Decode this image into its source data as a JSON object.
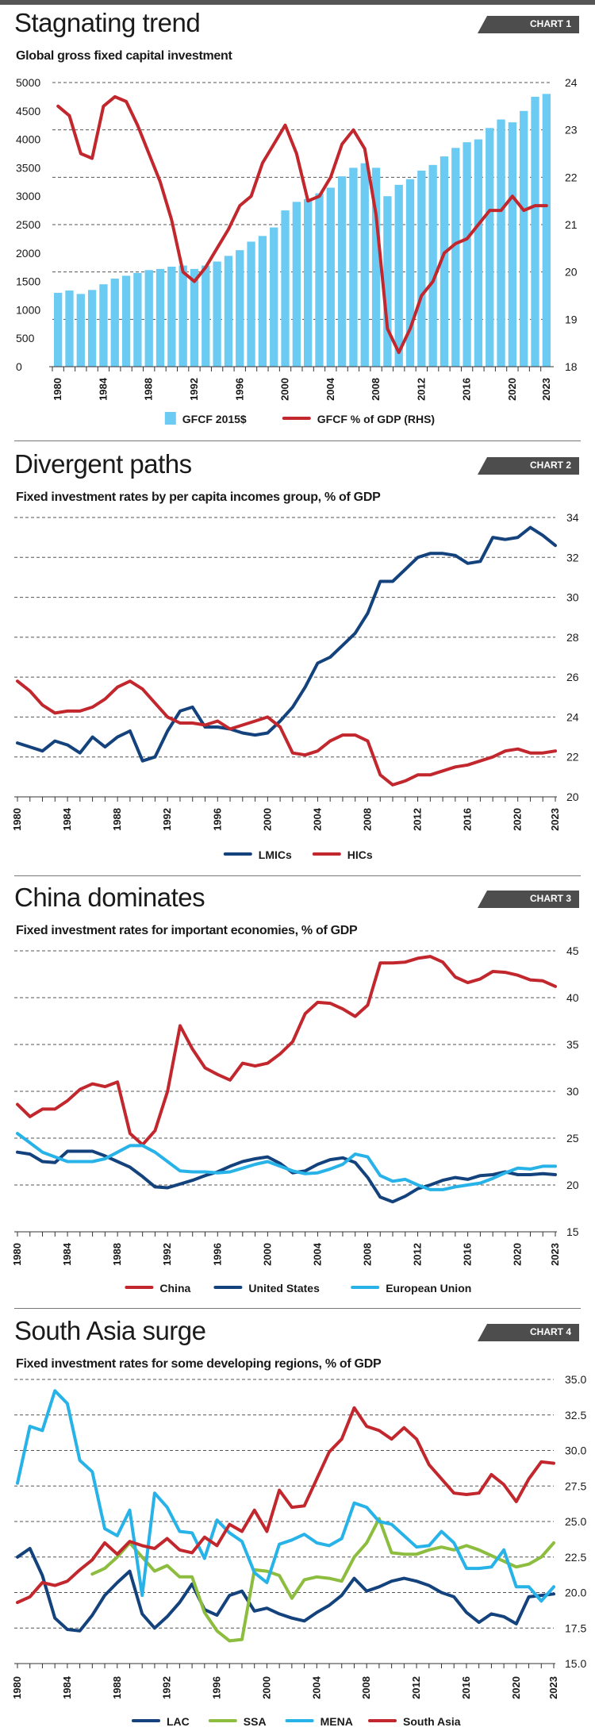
{
  "chart_data": [
    {
      "type": "bar+line",
      "tag": "CHART 1",
      "title": "Stagnating trend",
      "subtitle": "Global gross fixed capital investment",
      "x": [
        1980,
        1981,
        1982,
        1983,
        1984,
        1985,
        1986,
        1987,
        1988,
        1989,
        1990,
        1991,
        1992,
        1993,
        1994,
        1995,
        1996,
        1997,
        1998,
        1999,
        2000,
        2001,
        2002,
        2003,
        2004,
        2005,
        2006,
        2007,
        2008,
        2009,
        2010,
        2011,
        2012,
        2013,
        2014,
        2015,
        2016,
        2017,
        2018,
        2019,
        2020,
        2021,
        2022,
        2023
      ],
      "xticks": [
        "1980",
        "1984",
        "1988",
        "1992",
        "1996",
        "2000",
        "2004",
        "2008",
        "2012",
        "2016",
        "2020",
        "2023"
      ],
      "ylim": [
        0,
        5000
      ],
      "yticks": [
        "0",
        "500",
        "1000",
        "1500",
        "2000",
        "2500",
        "3000",
        "3500",
        "4000",
        "4500",
        "5000"
      ],
      "y2lim": [
        18,
        24
      ],
      "y2ticks": [
        "18",
        "19",
        "20",
        "21",
        "22",
        "23",
        "24"
      ],
      "series": [
        {
          "name": "GFCF 2015$",
          "kind": "bar",
          "axis": "left",
          "color": "#6ccbf2",
          "values": [
            1300,
            1340,
            1280,
            1350,
            1450,
            1550,
            1600,
            1650,
            1700,
            1720,
            1760,
            1780,
            1720,
            1780,
            1850,
            1950,
            2050,
            2200,
            2300,
            2450,
            2750,
            2900,
            2950,
            3050,
            3150,
            3350,
            3500,
            3580,
            3500,
            3000,
            3200,
            3300,
            3450,
            3550,
            3700,
            3850,
            3950,
            4000,
            4200,
            4350,
            4300,
            4500,
            4750,
            4800
          ]
        },
        {
          "name": "GFCF % of GDP (RHS)",
          "kind": "line",
          "axis": "right",
          "color": "#c1272d",
          "values": [
            23.5,
            23.3,
            22.5,
            22.4,
            23.5,
            23.7,
            23.6,
            23.1,
            22.5,
            21.9,
            21.1,
            20.0,
            19.8,
            20.1,
            20.5,
            20.9,
            21.4,
            21.6,
            22.3,
            22.7,
            23.1,
            22.5,
            21.5,
            21.6,
            22.0,
            22.7,
            23.0,
            22.6,
            21.2,
            18.8,
            18.3,
            18.8,
            19.5,
            19.8,
            20.4,
            20.6,
            20.7,
            21.0,
            21.3,
            21.3,
            21.6,
            21.3,
            21.4,
            21.4
          ]
        }
      ]
    },
    {
      "type": "line",
      "tag": "CHART 2",
      "title": "Divergent paths",
      "subtitle": "Fixed investment rates by per capita incomes group, % of GDP",
      "x": [
        1980,
        1981,
        1982,
        1983,
        1984,
        1985,
        1986,
        1987,
        1988,
        1989,
        1990,
        1991,
        1992,
        1993,
        1994,
        1995,
        1996,
        1997,
        1998,
        1999,
        2000,
        2001,
        2002,
        2003,
        2004,
        2005,
        2006,
        2007,
        2008,
        2009,
        2010,
        2011,
        2012,
        2013,
        2014,
        2015,
        2016,
        2017,
        2018,
        2019,
        2020,
        2021,
        2022,
        2023
      ],
      "xticks": [
        "1980",
        "1984",
        "1988",
        "1992",
        "1996",
        "2000",
        "2004",
        "2008",
        "2012",
        "2016",
        "2020",
        "2023"
      ],
      "ylim": [
        20,
        34
      ],
      "yticks": [
        "20",
        "22",
        "24",
        "26",
        "28",
        "30",
        "32",
        "34"
      ],
      "series": [
        {
          "name": "LMICs",
          "color": "#13427d",
          "values": [
            22.7,
            22.5,
            22.3,
            22.8,
            22.6,
            22.2,
            23.0,
            22.5,
            23.0,
            23.3,
            21.8,
            22.0,
            23.3,
            24.3,
            24.5,
            23.5,
            23.5,
            23.4,
            23.2,
            23.1,
            23.2,
            23.8,
            24.5,
            25.5,
            26.7,
            27.0,
            27.6,
            28.2,
            29.2,
            30.8,
            30.8,
            31.4,
            32.0,
            32.2,
            32.2,
            32.1,
            31.7,
            31.8,
            33.0,
            32.9,
            33.0,
            33.5,
            33.1,
            32.6
          ]
        },
        {
          "name": "HICs",
          "color": "#c1272d",
          "values": [
            25.8,
            25.3,
            24.6,
            24.2,
            24.3,
            24.3,
            24.5,
            24.9,
            25.5,
            25.8,
            25.4,
            24.7,
            24.0,
            23.7,
            23.7,
            23.6,
            23.8,
            23.4,
            23.6,
            23.8,
            24.0,
            23.5,
            22.2,
            22.1,
            22.3,
            22.8,
            23.1,
            23.1,
            22.8,
            21.1,
            20.6,
            20.8,
            21.1,
            21.1,
            21.3,
            21.5,
            21.6,
            21.8,
            22.0,
            22.3,
            22.4,
            22.2,
            22.2,
            22.3
          ]
        }
      ]
    },
    {
      "type": "line",
      "tag": "CHART 3",
      "title": "China dominates",
      "subtitle": "Fixed investment rates for important economies, % of GDP",
      "x": [
        1980,
        1981,
        1982,
        1983,
        1984,
        1985,
        1986,
        1987,
        1988,
        1989,
        1990,
        1991,
        1992,
        1993,
        1994,
        1995,
        1996,
        1997,
        1998,
        1999,
        2000,
        2001,
        2002,
        2003,
        2004,
        2005,
        2006,
        2007,
        2008,
        2009,
        2010,
        2011,
        2012,
        2013,
        2014,
        2015,
        2016,
        2017,
        2018,
        2019,
        2020,
        2021,
        2022,
        2023
      ],
      "xticks": [
        "1980",
        "1984",
        "1988",
        "1992",
        "1996",
        "2000",
        "2004",
        "2008",
        "2012",
        "2016",
        "2020",
        "2023"
      ],
      "ylim": [
        15,
        45
      ],
      "yticks": [
        "15",
        "20",
        "25",
        "30",
        "35",
        "40",
        "45"
      ],
      "series": [
        {
          "name": "China",
          "color": "#c1272d",
          "values": [
            28.6,
            27.3,
            28.1,
            28.1,
            29.0,
            30.2,
            30.8,
            30.5,
            31.0,
            25.5,
            24.3,
            25.8,
            30.0,
            37.0,
            34.5,
            32.5,
            31.8,
            31.2,
            33.0,
            32.7,
            33.0,
            34.0,
            35.3,
            38.3,
            39.5,
            39.4,
            38.8,
            38.0,
            39.2,
            43.7,
            43.7,
            43.8,
            44.2,
            44.4,
            43.8,
            42.2,
            41.6,
            42.0,
            42.8,
            42.7,
            42.4,
            41.9,
            41.8,
            41.2
          ]
        },
        {
          "name": "United States",
          "color": "#13427d",
          "values": [
            23.5,
            23.3,
            22.5,
            22.4,
            23.6,
            23.6,
            23.6,
            23.1,
            22.5,
            21.9,
            20.9,
            19.8,
            19.7,
            20.1,
            20.5,
            21.0,
            21.4,
            22.0,
            22.5,
            22.8,
            23.0,
            22.3,
            21.3,
            21.5,
            22.2,
            22.7,
            22.9,
            22.4,
            20.8,
            18.7,
            18.2,
            18.8,
            19.6,
            20.0,
            20.5,
            20.8,
            20.6,
            21.0,
            21.1,
            21.4,
            21.1,
            21.1,
            21.2,
            21.1
          ]
        },
        {
          "name": "European Union",
          "color": "#27b2e8",
          "values": [
            25.5,
            24.5,
            23.5,
            23.0,
            22.5,
            22.5,
            22.5,
            22.8,
            23.5,
            24.2,
            24.2,
            23.5,
            22.5,
            21.5,
            21.4,
            21.4,
            21.3,
            21.4,
            21.8,
            22.2,
            22.5,
            22.0,
            21.5,
            21.2,
            21.3,
            21.7,
            22.2,
            23.3,
            23.0,
            21.0,
            20.4,
            20.6,
            20.0,
            19.5,
            19.5,
            19.8,
            20.0,
            20.2,
            20.7,
            21.3,
            21.8,
            21.7,
            22.0,
            22.0
          ]
        }
      ]
    },
    {
      "type": "line",
      "tag": "CHART 4",
      "title": "South Asia surge",
      "subtitle": "Fixed investment rates for some developing regions, % of GDP",
      "x": [
        1980,
        1981,
        1982,
        1983,
        1984,
        1985,
        1986,
        1987,
        1988,
        1989,
        1990,
        1991,
        1992,
        1993,
        1994,
        1995,
        1996,
        1997,
        1998,
        1999,
        2000,
        2001,
        2002,
        2003,
        2004,
        2005,
        2006,
        2007,
        2008,
        2009,
        2010,
        2011,
        2012,
        2013,
        2014,
        2015,
        2016,
        2017,
        2018,
        2019,
        2020,
        2021,
        2022,
        2023
      ],
      "xticks": [
        "1980",
        "1984",
        "1988",
        "1992",
        "1996",
        "2000",
        "2004",
        "2008",
        "2012",
        "2016",
        "2020",
        "2023"
      ],
      "ylim": [
        15,
        35
      ],
      "yticks": [
        "15.0",
        "17.5",
        "20.0",
        "22.5",
        "25.0",
        "27.5",
        "30.0",
        "32.5",
        "35.0"
      ],
      "series": [
        {
          "name": "LAC",
          "color": "#13427d",
          "values": [
            22.5,
            23.1,
            21.2,
            18.2,
            17.4,
            17.3,
            18.4,
            19.8,
            20.7,
            21.5,
            18.5,
            17.5,
            18.3,
            19.3,
            20.6,
            18.8,
            18.4,
            19.8,
            20.1,
            18.7,
            18.9,
            18.5,
            18.2,
            18.0,
            18.6,
            19.1,
            19.8,
            21.0,
            20.1,
            20.4,
            20.8,
            21.0,
            20.8,
            20.5,
            20.0,
            19.7,
            18.6,
            17.9,
            18.5,
            18.3,
            17.8,
            19.7,
            19.8,
            19.9
          ]
        },
        {
          "name": "SSA",
          "color": "#8cbd3f",
          "values": [
            null,
            null,
            null,
            null,
            null,
            null,
            21.3,
            21.7,
            22.5,
            23.5,
            22.5,
            21.5,
            21.9,
            21.1,
            21.1,
            18.6,
            17.3,
            16.6,
            16.7,
            21.6,
            21.5,
            21.2,
            19.6,
            20.9,
            21.1,
            21.0,
            20.8,
            22.5,
            23.5,
            25.2,
            22.8,
            22.7,
            22.7,
            23.0,
            23.2,
            23.0,
            23.3,
            23.0,
            22.6,
            22.2,
            21.8,
            22.0,
            22.5,
            23.5
          ]
        },
        {
          "name": "MENA",
          "color": "#27b2e8",
          "values": [
            27.7,
            31.7,
            31.4,
            34.2,
            33.3,
            29.3,
            28.5,
            24.5,
            24.0,
            25.8,
            19.8,
            27.0,
            26.0,
            24.3,
            24.2,
            22.4,
            25.1,
            24.2,
            23.6,
            21.4,
            20.7,
            23.4,
            23.7,
            24.1,
            23.5,
            23.3,
            23.8,
            26.3,
            26.0,
            25.0,
            24.8,
            24.0,
            23.2,
            23.3,
            24.3,
            23.5,
            21.7,
            21.7,
            21.8,
            23.0,
            20.4,
            20.4,
            19.4,
            20.4
          ]
        },
        {
          "name": "South Asia",
          "color": "#c1272d",
          "values": [
            19.3,
            19.7,
            20.7,
            20.5,
            20.8,
            21.6,
            22.3,
            23.5,
            22.7,
            23.6,
            23.3,
            23.1,
            23.8,
            23.0,
            22.8,
            23.9,
            23.3,
            24.8,
            24.3,
            25.8,
            24.3,
            27.2,
            26.0,
            26.1,
            28.0,
            29.9,
            30.8,
            33.0,
            31.7,
            31.4,
            30.8,
            31.6,
            30.8,
            29.0,
            28.0,
            27.0,
            26.9,
            27.0,
            28.3,
            27.6,
            26.4,
            28.0,
            29.2,
            29.1
          ]
        }
      ]
    }
  ]
}
